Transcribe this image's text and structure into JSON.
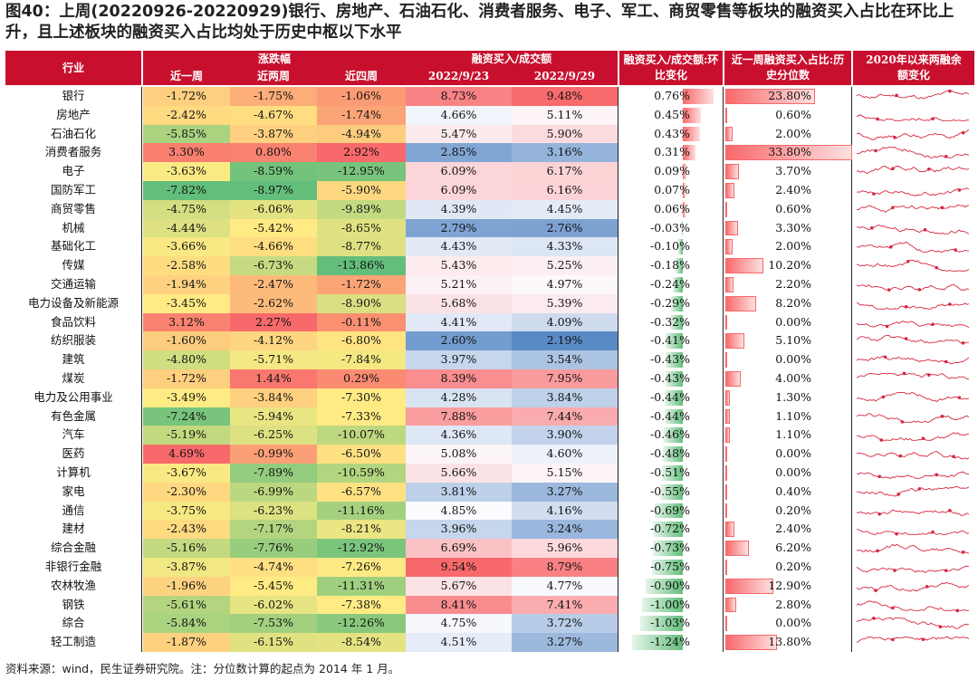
{
  "title": "图40：上周(20220926-20220929)银行、房地产、石油石化、消费者服务、电子、军工、商贸零售等板块的融资买入占比在环比上升，且上述板块的融资买入占比均处于历史中枢以下水平",
  "headers": {
    "industry": "行业",
    "change_group": "涨跌幅",
    "w1": "近一周",
    "w2": "近两周",
    "w4": "近四周",
    "ratio_group": "融资买入/成交额",
    "d1": "2022/9/23",
    "d2": "2022/9/29",
    "wow": "融资买入/成交额:环比变化",
    "pct": "近一周融资买入占比:历史分位数",
    "trend": "2020年以来两融余额变化"
  },
  "rows": [
    {
      "name": "银行",
      "w1": "-1.72%",
      "w2": "-1.75%",
      "w4": "-1.06%",
      "d1": "8.73%",
      "d2": "9.48%",
      "wow": "0.76%",
      "wowv": 0.76,
      "pct": "23.80%",
      "pctv": 23.8
    },
    {
      "name": "房地产",
      "w1": "-2.42%",
      "w2": "-4.67%",
      "w4": "-1.74%",
      "d1": "4.66%",
      "d2": "5.11%",
      "wow": "0.45%",
      "wowv": 0.45,
      "pct": "0.60%",
      "pctv": 0.6
    },
    {
      "name": "石油石化",
      "w1": "-5.85%",
      "w2": "-3.87%",
      "w4": "-4.94%",
      "d1": "5.47%",
      "d2": "5.90%",
      "wow": "0.43%",
      "wowv": 0.43,
      "pct": "2.00%",
      "pctv": 2.0
    },
    {
      "name": "消费者服务",
      "w1": "3.30%",
      "w2": "0.80%",
      "w4": "2.92%",
      "d1": "2.85%",
      "d2": "3.16%",
      "wow": "0.31%",
      "wowv": 0.31,
      "pct": "33.80%",
      "pctv": 33.8
    },
    {
      "name": "电子",
      "w1": "-3.63%",
      "w2": "-8.59%",
      "w4": "-12.95%",
      "d1": "6.09%",
      "d2": "6.17%",
      "wow": "0.09%",
      "wowv": 0.09,
      "pct": "3.70%",
      "pctv": 3.7
    },
    {
      "name": "国防军工",
      "w1": "-7.82%",
      "w2": "-8.97%",
      "w4": "-5.90%",
      "d1": "6.09%",
      "d2": "6.16%",
      "wow": "0.07%",
      "wowv": 0.07,
      "pct": "2.40%",
      "pctv": 2.4
    },
    {
      "name": "商贸零售",
      "w1": "-4.75%",
      "w2": "-6.06%",
      "w4": "-9.89%",
      "d1": "4.39%",
      "d2": "4.45%",
      "wow": "0.06%",
      "wowv": 0.06,
      "pct": "0.60%",
      "pctv": 0.6
    },
    {
      "name": "机械",
      "w1": "-4.44%",
      "w2": "-5.42%",
      "w4": "-8.65%",
      "d1": "2.79%",
      "d2": "2.76%",
      "wow": "-0.03%",
      "wowv": -0.03,
      "pct": "3.30%",
      "pctv": 3.3
    },
    {
      "name": "基础化工",
      "w1": "-3.66%",
      "w2": "-4.66%",
      "w4": "-8.77%",
      "d1": "4.43%",
      "d2": "4.33%",
      "wow": "-0.10%",
      "wowv": -0.1,
      "pct": "2.00%",
      "pctv": 2.0
    },
    {
      "name": "传媒",
      "w1": "-2.58%",
      "w2": "-6.73%",
      "w4": "-13.86%",
      "d1": "5.43%",
      "d2": "5.25%",
      "wow": "-0.18%",
      "wowv": -0.18,
      "pct": "10.20%",
      "pctv": 10.2
    },
    {
      "name": "交通运输",
      "w1": "-1.94%",
      "w2": "-2.47%",
      "w4": "-1.72%",
      "d1": "5.21%",
      "d2": "4.97%",
      "wow": "-0.24%",
      "wowv": -0.24,
      "pct": "2.20%",
      "pctv": 2.2
    },
    {
      "name": "电力设备及新能源",
      "w1": "-3.45%",
      "w2": "-2.62%",
      "w4": "-8.90%",
      "d1": "5.68%",
      "d2": "5.39%",
      "wow": "-0.29%",
      "wowv": -0.29,
      "pct": "8.20%",
      "pctv": 8.2
    },
    {
      "name": "食品饮料",
      "w1": "3.12%",
      "w2": "2.27%",
      "w4": "-0.11%",
      "d1": "4.41%",
      "d2": "4.09%",
      "wow": "-0.32%",
      "wowv": -0.32,
      "pct": "0.00%",
      "pctv": 0.0
    },
    {
      "name": "纺织服装",
      "w1": "-1.60%",
      "w2": "-4.12%",
      "w4": "-6.80%",
      "d1": "2.60%",
      "d2": "2.19%",
      "wow": "-0.41%",
      "wowv": -0.41,
      "pct": "5.10%",
      "pctv": 5.1
    },
    {
      "name": "建筑",
      "w1": "-4.80%",
      "w2": "-5.71%",
      "w4": "-7.84%",
      "d1": "3.97%",
      "d2": "3.54%",
      "wow": "-0.43%",
      "wowv": -0.43,
      "pct": "0.00%",
      "pctv": 0.0
    },
    {
      "name": "煤炭",
      "w1": "-1.72%",
      "w2": "1.44%",
      "w4": "0.29%",
      "d1": "8.39%",
      "d2": "7.95%",
      "wow": "-0.43%",
      "wowv": -0.43,
      "pct": "4.00%",
      "pctv": 4.0
    },
    {
      "name": "电力及公用事业",
      "w1": "-3.49%",
      "w2": "-3.84%",
      "w4": "-7.30%",
      "d1": "4.28%",
      "d2": "3.84%",
      "wow": "-0.44%",
      "wowv": -0.44,
      "pct": "1.30%",
      "pctv": 1.3
    },
    {
      "name": "有色金属",
      "w1": "-7.24%",
      "w2": "-5.94%",
      "w4": "-7.33%",
      "d1": "7.88%",
      "d2": "7.44%",
      "wow": "-0.44%",
      "wowv": -0.44,
      "pct": "1.10%",
      "pctv": 1.1
    },
    {
      "name": "汽车",
      "w1": "-5.19%",
      "w2": "-6.25%",
      "w4": "-10.07%",
      "d1": "4.36%",
      "d2": "3.90%",
      "wow": "-0.46%",
      "wowv": -0.46,
      "pct": "1.10%",
      "pctv": 1.1
    },
    {
      "name": "医药",
      "w1": "4.69%",
      "w2": "-0.99%",
      "w4": "-6.50%",
      "d1": "5.08%",
      "d2": "4.60%",
      "wow": "-0.48%",
      "wowv": -0.48,
      "pct": "0.00%",
      "pctv": 0.0
    },
    {
      "name": "计算机",
      "w1": "-3.67%",
      "w2": "-7.89%",
      "w4": "-10.59%",
      "d1": "5.66%",
      "d2": "5.15%",
      "wow": "-0.51%",
      "wowv": -0.51,
      "pct": "0.00%",
      "pctv": 0.0
    },
    {
      "name": "家电",
      "w1": "-2.30%",
      "w2": "-6.99%",
      "w4": "-6.57%",
      "d1": "3.81%",
      "d2": "3.27%",
      "wow": "-0.55%",
      "wowv": -0.55,
      "pct": "0.40%",
      "pctv": 0.4
    },
    {
      "name": "通信",
      "w1": "-3.75%",
      "w2": "-6.23%",
      "w4": "-11.16%",
      "d1": "4.85%",
      "d2": "4.16%",
      "wow": "-0.69%",
      "wowv": -0.69,
      "pct": "0.20%",
      "pctv": 0.2
    },
    {
      "name": "建材",
      "w1": "-2.43%",
      "w2": "-7.17%",
      "w4": "-8.21%",
      "d1": "3.96%",
      "d2": "3.24%",
      "wow": "-0.72%",
      "wowv": -0.72,
      "pct": "2.40%",
      "pctv": 2.4
    },
    {
      "name": "综合金融",
      "w1": "-5.16%",
      "w2": "-7.76%",
      "w4": "-12.92%",
      "d1": "6.69%",
      "d2": "5.96%",
      "wow": "-0.73%",
      "wowv": -0.73,
      "pct": "6.20%",
      "pctv": 6.2
    },
    {
      "name": "非银行金融",
      "w1": "-3.87%",
      "w2": "-4.74%",
      "w4": "-7.26%",
      "d1": "9.54%",
      "d2": "8.79%",
      "wow": "-0.75%",
      "wowv": -0.75,
      "pct": "0.20%",
      "pctv": 0.2
    },
    {
      "name": "农林牧渔",
      "w1": "-1.96%",
      "w2": "-5.45%",
      "w4": "-11.31%",
      "d1": "5.67%",
      "d2": "4.77%",
      "wow": "-0.90%",
      "wowv": -0.9,
      "pct": "12.90%",
      "pctv": 12.9
    },
    {
      "name": "钢铁",
      "w1": "-5.61%",
      "w2": "-6.02%",
      "w4": "-7.38%",
      "d1": "8.41%",
      "d2": "7.41%",
      "wow": "-1.00%",
      "wowv": -1.0,
      "pct": "2.80%",
      "pctv": 2.8
    },
    {
      "name": "综合",
      "w1": "-5.84%",
      "w2": "-7.53%",
      "w4": "-12.26%",
      "d1": "4.75%",
      "d2": "3.72%",
      "wow": "-1.03%",
      "wowv": -1.03,
      "pct": "0.00%",
      "pctv": 0.0
    },
    {
      "name": "轻工制造",
      "w1": "-1.87%",
      "w2": "-6.15%",
      "w4": "-8.54%",
      "d1": "4.51%",
      "d2": "3.27%",
      "wow": "-1.24%",
      "wowv": -1.24,
      "pct": "13.80%",
      "pctv": 13.8
    }
  ],
  "colors": {
    "header_red": "#c8102e",
    "heat_high": "#f8696b",
    "heat_mid": "#ffeb84",
    "heat_low": "#63be7b",
    "ratio_high": "#f8696b",
    "ratio_mid": "#fcfcff",
    "ratio_low": "#5a8ac6",
    "bar_red": "#f8696b",
    "bar_green": "#63be7b",
    "spark": "#d7263d"
  },
  "footer": "资料来源：wind，民生证券研究院。注：分位数计算的起点为 2014 年 1 月。"
}
